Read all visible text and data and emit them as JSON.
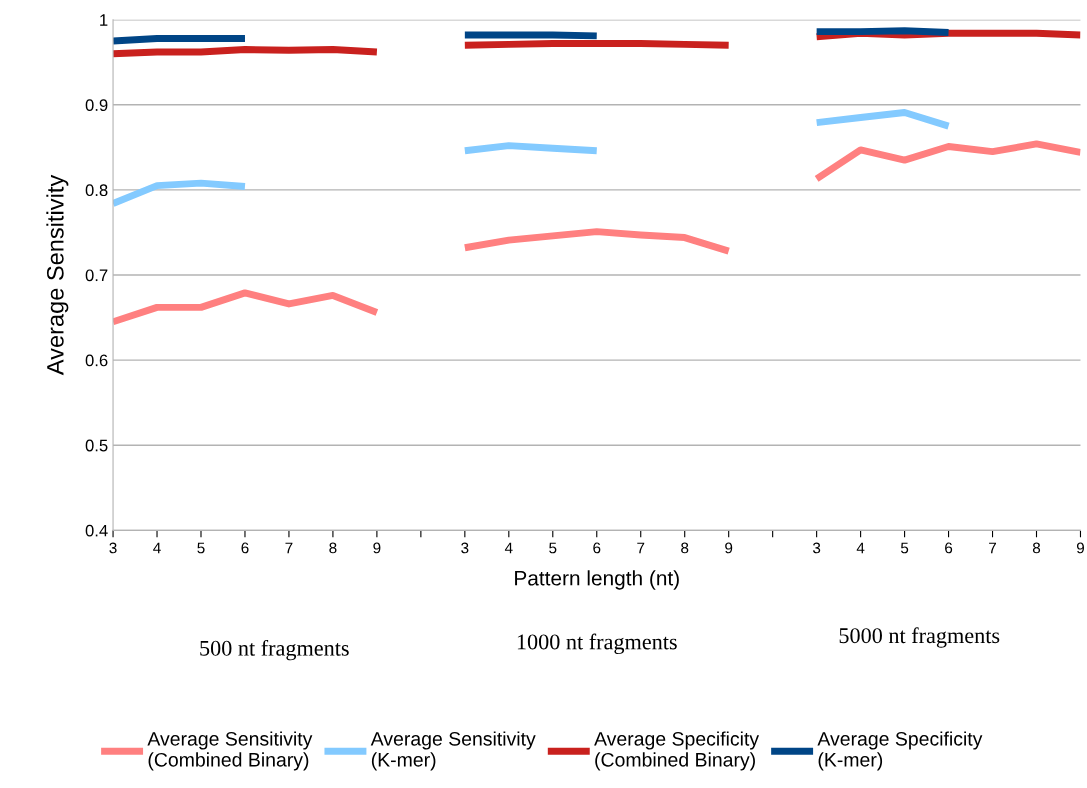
{
  "chart_data": {
    "type": "line",
    "xlabel": "Pattern length (nt)",
    "ylabel": "Average Sensitivity",
    "categories": [
      "3",
      "4",
      "5",
      "6",
      "7",
      "8",
      "9",
      null,
      "3",
      "4",
      "5",
      "6",
      "7",
      "8",
      "9",
      null,
      "3",
      "4",
      "5",
      "6",
      "7",
      "8",
      "9"
    ],
    "series": [
      {
        "name": "Average Sensitivity\n(Combined Binary)",
        "color": "#ff8080",
        "values": [
          0.645,
          0.662,
          0.662,
          0.679,
          0.666,
          0.676,
          0.656,
          null,
          0.732,
          0.741,
          0.746,
          0.751,
          0.747,
          0.744,
          0.728,
          null,
          0.813,
          0.847,
          0.835,
          0.851,
          0.845,
          0.854,
          0.844
        ]
      },
      {
        "name": "Average Sensitivity\n(K-mer)",
        "color": "#83caff",
        "values": [
          0.784,
          0.805,
          0.808,
          0.804,
          null,
          null,
          null,
          null,
          0.846,
          0.852,
          0.849,
          0.846,
          null,
          null,
          null,
          null,
          0.879,
          0.885,
          0.891,
          0.875,
          null,
          null,
          null
        ]
      },
      {
        "name": "Average Specificity\n(Combined Binary)",
        "color": "#c9211e",
        "values": [
          0.96,
          0.962,
          0.962,
          0.965,
          0.964,
          0.965,
          0.962,
          null,
          0.97,
          0.971,
          0.972,
          0.972,
          0.972,
          0.971,
          0.97,
          null,
          0.98,
          0.984,
          0.982,
          0.984,
          0.984,
          0.984,
          0.982
        ]
      },
      {
        "name": "Average Specificity\n(K-mer)",
        "color": "#004586",
        "values": [
          0.975,
          0.978,
          0.978,
          0.978,
          null,
          null,
          null,
          null,
          0.982,
          0.982,
          0.982,
          0.981,
          null,
          null,
          null,
          null,
          0.986,
          0.986,
          0.987,
          0.985,
          null,
          null,
          null
        ]
      }
    ],
    "ylim": [
      0.4,
      1
    ],
    "yticks": [
      {
        "value": 0.4,
        "label": "0.4"
      },
      {
        "value": 0.5,
        "label": "0.5"
      },
      {
        "value": 0.6,
        "label": "0.6"
      },
      {
        "value": 0.7,
        "label": "0.7"
      },
      {
        "value": 0.8,
        "label": "0.8"
      },
      {
        "value": 0.9,
        "label": "0.9"
      },
      {
        "value": 1,
        "label": "1"
      }
    ],
    "grid": "y",
    "legend": "bottom",
    "marker": "none",
    "line_style": "solid",
    "annotations": [
      "500 nt fragments",
      "1000 nt fragments",
      "5000 nt fragments"
    ]
  }
}
